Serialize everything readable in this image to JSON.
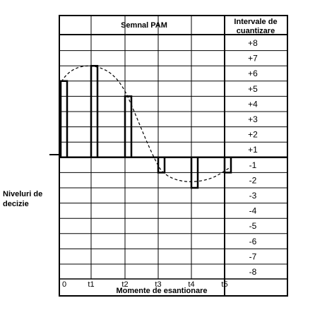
{
  "header": {
    "signal_title": "Semnal  PAM",
    "intervals_title_line1": "Intervale de",
    "intervals_title_line2": "cuantizare"
  },
  "levels": [
    "+8",
    "+7",
    "+6",
    "+5",
    "+4",
    "+3",
    "+2",
    "+1",
    "-1",
    "-2",
    "-3",
    "-4",
    "-5",
    "-6",
    "-7",
    "-8"
  ],
  "side_label": {
    "line1": "Niveluri de",
    "line2": "decizie"
  },
  "x_axis": {
    "ticks": [
      "0",
      "t1",
      "t2",
      "t3",
      "t4",
      "t5"
    ],
    "title": "Momente de esantionare"
  },
  "pam_samples": [
    {
      "moment": "0",
      "level": 5
    },
    {
      "moment": "t1",
      "level": 6
    },
    {
      "moment": "t2",
      "level": 4
    },
    {
      "moment": "t3",
      "level": -1
    },
    {
      "moment": "t4",
      "level": -2
    },
    {
      "moment": "t5",
      "level": -1
    }
  ],
  "colors": {
    "line": "#000000",
    "background": "#ffffff"
  }
}
